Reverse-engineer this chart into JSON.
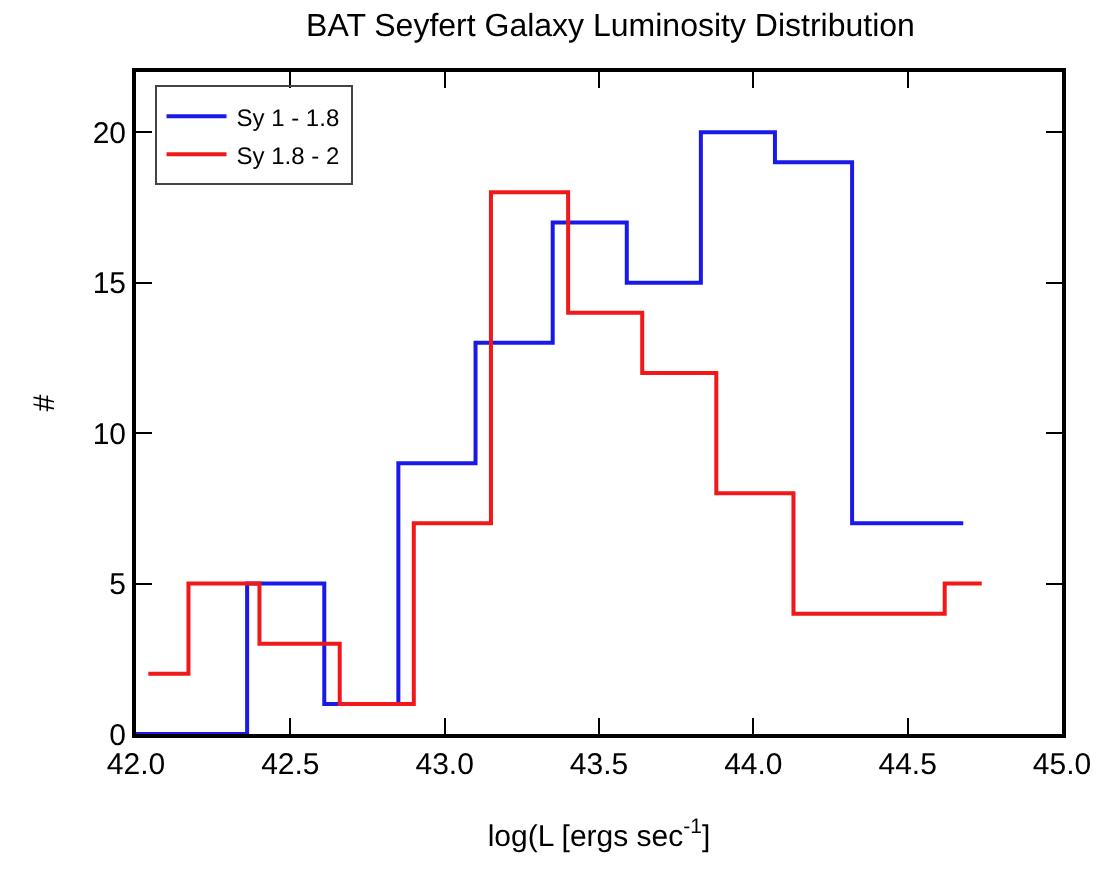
{
  "chart_data": {
    "type": "step",
    "title": "BAT Seyfert Galaxy Luminosity Distribution",
    "xlabel": "log(L [ergs sec$^{-1}$]",
    "ylabel": "#",
    "series": [
      {
        "name": "Sy 1 - 1.8",
        "color": "#1a1ae6",
        "x": [
          42.0,
          42.36,
          42.61,
          42.85,
          43.1,
          43.35,
          43.59,
          43.83,
          44.07,
          44.32,
          44.68
        ],
        "values": [
          0,
          5,
          1,
          9,
          13,
          17,
          15,
          20,
          19,
          7,
          7
        ]
      },
      {
        "name": "Sy 1.8 - 2",
        "color": "#f01818",
        "x": [
          42.04,
          42.17,
          42.4,
          42.66,
          42.9,
          43.15,
          43.4,
          43.64,
          43.88,
          44.13,
          44.62,
          44.74
        ],
        "values": [
          2,
          5,
          3,
          1,
          7,
          18,
          14,
          12,
          8,
          4,
          5,
          5
        ]
      }
    ],
    "xlim": [
      42,
      45
    ],
    "xticks": [
      {
        "value": 42,
        "label": "42.0"
      },
      {
        "value": 42.5,
        "label": "42.5"
      },
      {
        "value": 43,
        "label": "43.0"
      },
      {
        "value": 43.5,
        "label": "43.5"
      },
      {
        "value": 44,
        "label": "44.0"
      },
      {
        "value": 44.5,
        "label": "44.5"
      },
      {
        "value": 45,
        "label": "45.0"
      }
    ],
    "ylim": [
      0,
      22
    ],
    "yticks": [
      0,
      5,
      10,
      15,
      20
    ],
    "grid": false,
    "legend": "top left",
    "line_style": "solid",
    "marker": "none"
  }
}
